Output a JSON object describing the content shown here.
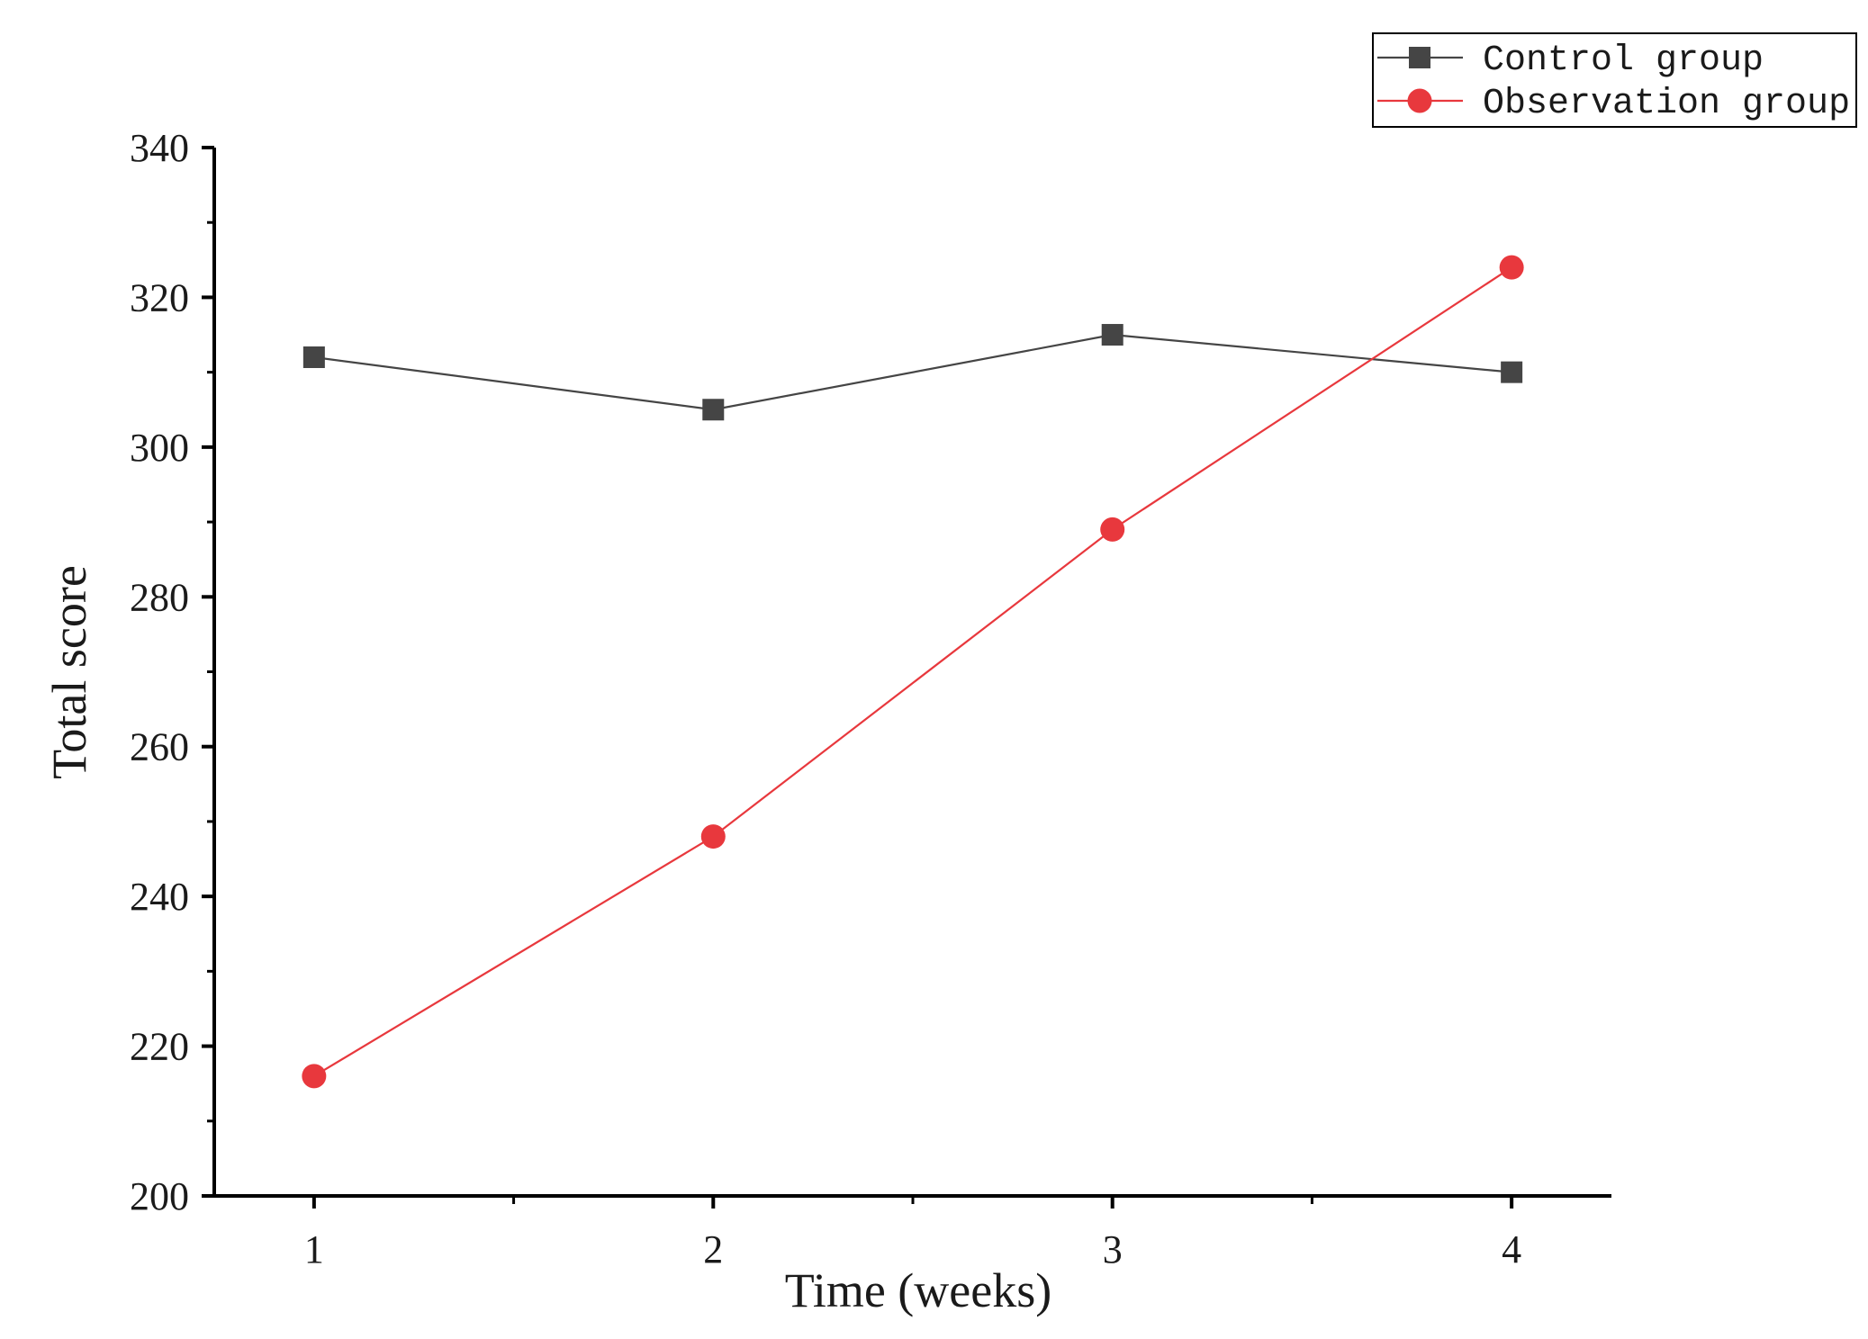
{
  "chart_data": {
    "type": "line",
    "title": "",
    "xlabel": "Time (weeks)",
    "ylabel": "Total score",
    "x": [
      1,
      2,
      3,
      4
    ],
    "xlim": [
      0.75,
      4.25
    ],
    "xticks": [
      1,
      2,
      3,
      4
    ],
    "ylim": [
      200,
      340
    ],
    "yticks": [
      200,
      220,
      240,
      260,
      280,
      300,
      320,
      340
    ],
    "grid": false,
    "legend_position": "top-right",
    "series": [
      {
        "name": "Control group",
        "values": [
          312,
          305,
          315,
          310
        ],
        "color": "#454545",
        "marker": "square"
      },
      {
        "name": "Observation group",
        "values": [
          216,
          248,
          289,
          324
        ],
        "color": "#e8383d",
        "marker": "circle"
      }
    ]
  }
}
